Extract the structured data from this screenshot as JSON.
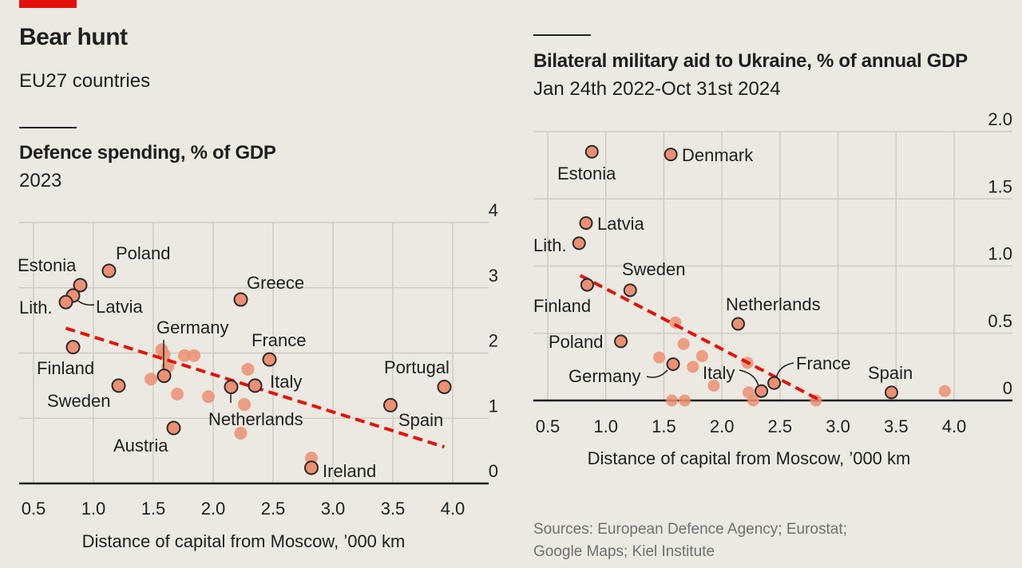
{
  "header": {
    "title": "Bear hunt",
    "subtitle": "EU27 countries"
  },
  "footer": {
    "source_line1": "Sources: European Defence Agency; Eurostat;",
    "source_line2": "Google Maps; Kiel Institute"
  },
  "colors": {
    "accent_red": "#e3120b",
    "dot_fill": "#ec8f72",
    "trend": "#e3120b"
  },
  "chart_data": [
    {
      "type": "scatter",
      "title": "Defence spending, % of GDP",
      "subtitle": "2023",
      "xlabel": "Distance of capital from Moscow, '000 km",
      "ylabel": "",
      "xlim": [
        0.5,
        4.0
      ],
      "ylim": [
        0,
        4
      ],
      "xticks": [
        "0.5",
        "1.0",
        "1.5",
        "2.0",
        "2.5",
        "3.0",
        "3.5",
        "4.0"
      ],
      "yticks": [
        "0",
        "1",
        "2",
        "3",
        "4"
      ],
      "grid": true,
      "labeled_points": [
        {
          "label": "Estonia",
          "x": 0.89,
          "y": 3.04
        },
        {
          "label": "Latvia",
          "x": 0.83,
          "y": 2.88
        },
        {
          "label": "Lith.",
          "x": 0.77,
          "y": 2.78
        },
        {
          "label": "Poland",
          "x": 1.13,
          "y": 3.26
        },
        {
          "label": "Finland",
          "x": 0.83,
          "y": 2.09
        },
        {
          "label": "Sweden",
          "x": 1.21,
          "y": 1.5
        },
        {
          "label": "Germany",
          "x": 1.59,
          "y": 1.65
        },
        {
          "label": "Austria",
          "x": 1.67,
          "y": 0.85
        },
        {
          "label": "Greece",
          "x": 2.23,
          "y": 2.82
        },
        {
          "label": "France",
          "x": 2.47,
          "y": 1.9
        },
        {
          "label": "Italy",
          "x": 2.35,
          "y": 1.5
        },
        {
          "label": "Netherlands",
          "x": 2.15,
          "y": 1.48
        },
        {
          "label": "Portugal",
          "x": 3.93,
          "y": 1.48
        },
        {
          "label": "Spain",
          "x": 3.48,
          "y": 1.2
        },
        {
          "label": "Ireland",
          "x": 2.82,
          "y": 0.24
        }
      ],
      "other_points": [
        {
          "x": 1.57,
          "y": 2.05
        },
        {
          "x": 1.59,
          "y": 1.98
        },
        {
          "x": 1.76,
          "y": 1.96
        },
        {
          "x": 1.84,
          "y": 1.96
        },
        {
          "x": 1.62,
          "y": 1.79
        },
        {
          "x": 1.48,
          "y": 1.6
        },
        {
          "x": 1.7,
          "y": 1.37
        },
        {
          "x": 1.96,
          "y": 1.33
        },
        {
          "x": 2.29,
          "y": 1.75
        },
        {
          "x": 2.26,
          "y": 1.21
        },
        {
          "x": 2.23,
          "y": 0.77
        },
        {
          "x": 2.82,
          "y": 0.39
        }
      ],
      "trend": {
        "x": [
          0.77,
          3.93
        ],
        "y": [
          2.38,
          0.56
        ]
      }
    },
    {
      "type": "scatter",
      "title": "Bilateral military aid to Ukraine, % of annual GDP",
      "subtitle": "Jan 24th 2022-Oct 31st 2024",
      "xlabel": "Distance of capital from Moscow, '000 km",
      "ylabel": "",
      "xlim": [
        0.5,
        4.0
      ],
      "ylim": [
        0,
        2.0
      ],
      "xticks": [
        "0.5",
        "1.0",
        "1.5",
        "2.0",
        "2.5",
        "3.0",
        "3.5",
        "4.0"
      ],
      "yticks": [
        "0",
        "0.5",
        "1.0",
        "1.5",
        "2.0"
      ],
      "grid": true,
      "labeled_points": [
        {
          "label": "Estonia",
          "x": 0.88,
          "y": 1.85
        },
        {
          "label": "Denmark",
          "x": 1.56,
          "y": 1.83
        },
        {
          "label": "Latvia",
          "x": 0.83,
          "y": 1.32
        },
        {
          "label": "Lith.",
          "x": 0.77,
          "y": 1.17
        },
        {
          "label": "Finland",
          "x": 0.84,
          "y": 0.86
        },
        {
          "label": "Sweden",
          "x": 1.21,
          "y": 0.82
        },
        {
          "label": "Netherlands",
          "x": 2.14,
          "y": 0.57
        },
        {
          "label": "Poland",
          "x": 1.13,
          "y": 0.44
        },
        {
          "label": "Germany",
          "x": 1.58,
          "y": 0.27
        },
        {
          "label": "Italy",
          "x": 2.34,
          "y": 0.07
        },
        {
          "label": "France",
          "x": 2.45,
          "y": 0.13
        },
        {
          "label": "Spain",
          "x": 3.46,
          "y": 0.06
        }
      ],
      "other_points": [
        {
          "x": 1.6,
          "y": 0.58
        },
        {
          "x": 1.67,
          "y": 0.42
        },
        {
          "x": 1.46,
          "y": 0.32
        },
        {
          "x": 1.83,
          "y": 0.33
        },
        {
          "x": 1.75,
          "y": 0.25
        },
        {
          "x": 1.93,
          "y": 0.11
        },
        {
          "x": 1.57,
          "y": 0.0
        },
        {
          "x": 1.68,
          "y": 0.0
        },
        {
          "x": 2.22,
          "y": 0.28
        },
        {
          "x": 2.23,
          "y": 0.06
        },
        {
          "x": 2.27,
          "y": 0.0
        },
        {
          "x": 2.81,
          "y": 0.0
        },
        {
          "x": 3.92,
          "y": 0.07
        }
      ],
      "trend": {
        "x": [
          0.78,
          2.85
        ],
        "y": [
          0.93,
          0.0
        ]
      }
    }
  ]
}
